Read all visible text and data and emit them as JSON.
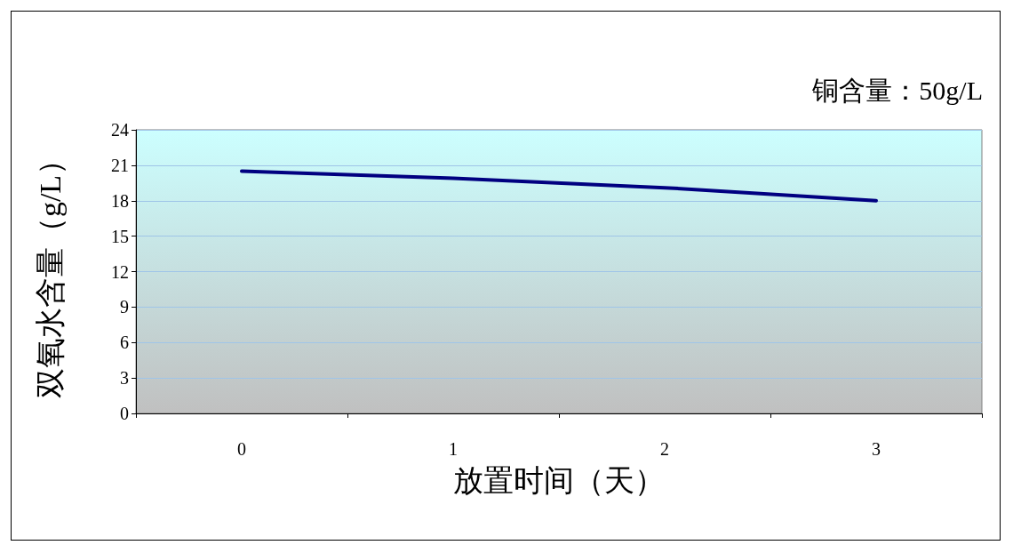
{
  "chart_data": {
    "type": "line",
    "xlabel": "放置时间（天）",
    "ylabel": "双氧水含量（g/L）",
    "annotations": [
      "铜含量：50g/L"
    ],
    "categories": [
      "0",
      "1",
      "2",
      "3"
    ],
    "series": [
      {
        "color": "#000080",
        "values": [
          20.5,
          19.9,
          19.1,
          18.0
        ]
      }
    ],
    "ylim": [
      0,
      24
    ],
    "yticks": [
      0,
      3,
      6,
      9,
      12,
      15,
      18,
      21,
      24
    ],
    "grid": "y",
    "marker": "none",
    "line_style": "solid"
  }
}
